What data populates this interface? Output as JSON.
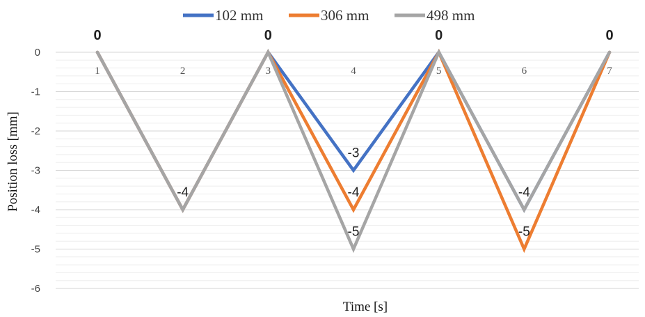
{
  "chart_data": {
    "type": "line",
    "xlabel": "Time [s]",
    "ylabel": "Position loss [mm]",
    "x": [
      1,
      2,
      3,
      4,
      5,
      6,
      7
    ],
    "x_tick_labels": [
      "1",
      "2",
      "3",
      "4",
      "5",
      "6",
      "7"
    ],
    "ylim": [
      -6,
      0
    ],
    "y_tick_labels": [
      "0",
      "-1",
      "-2",
      "-3",
      "-4",
      "-5",
      "-6"
    ],
    "grid": true,
    "legend_position": "top",
    "series": [
      {
        "name": "102 mm",
        "color": "#4472c4",
        "values": [
          0,
          -4,
          0,
          -3,
          0,
          -4,
          0
        ]
      },
      {
        "name": "306 mm",
        "color": "#ed7d31",
        "values": [
          0,
          -4,
          0,
          -4,
          0,
          -5,
          0
        ]
      },
      {
        "name": "498 mm",
        "color": "#a5a5a5",
        "values": [
          0,
          -4,
          0,
          -5,
          0,
          -4,
          0
        ]
      }
    ],
    "data_labels": [
      {
        "x": 1,
        "y": 0,
        "text": "0",
        "style": "bold"
      },
      {
        "x": 3,
        "y": 0,
        "text": "0",
        "style": "bold"
      },
      {
        "x": 5,
        "y": 0,
        "text": "0",
        "style": "bold"
      },
      {
        "x": 7,
        "y": 0,
        "text": "0",
        "style": "bold"
      },
      {
        "x": 2,
        "y": -4,
        "text": "-4",
        "style": "normal"
      },
      {
        "x": 4,
        "y": -3,
        "text": "-3",
        "style": "normal"
      },
      {
        "x": 4,
        "y": -4,
        "text": "-4",
        "style": "normal"
      },
      {
        "x": 4,
        "y": -5,
        "text": "-5",
        "style": "normal"
      },
      {
        "x": 6,
        "y": -4,
        "text": "-4",
        "style": "normal"
      },
      {
        "x": 6,
        "y": -5,
        "text": "-5",
        "style": "normal"
      }
    ]
  }
}
